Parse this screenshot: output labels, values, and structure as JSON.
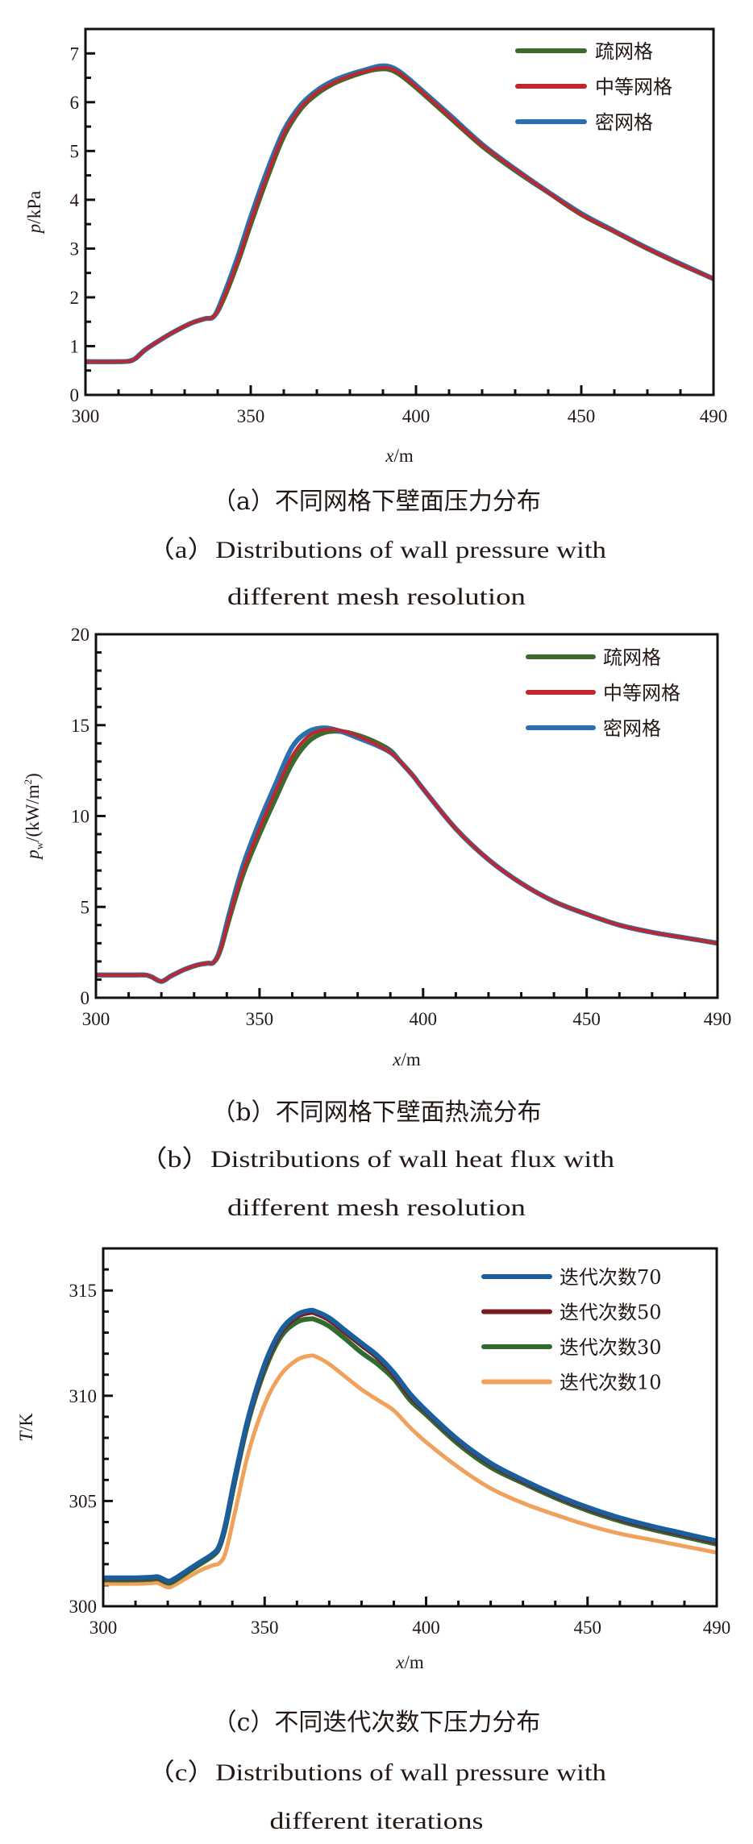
{
  "chart_data": [
    {
      "id": "a",
      "type": "line",
      "ylabel_italic": "p",
      "ylabel_unit": "/kPa",
      "xlabel_italic": "x",
      "xlabel_unit": "/m",
      "xlim": [
        300,
        490
      ],
      "ylim": [
        0,
        7.5
      ],
      "xticks": [
        300,
        350,
        400,
        450,
        490
      ],
      "xtick_labels": [
        "300",
        "350",
        "400",
        "450",
        "490"
      ],
      "yticks": [
        0,
        1,
        2,
        3,
        4,
        5,
        6,
        7
      ],
      "ytick_labels": [
        "0",
        "1",
        "2",
        "3",
        "4",
        "5",
        "6",
        "7"
      ],
      "x_minor_step": 10,
      "y_minor_step": 0.5,
      "legend_position": "top-right",
      "caption_cn": "（a）不同网格下壁面压力分布",
      "caption_en_line1": "（a）Distributions of wall pressure with",
      "caption_en_line2": "different mesh resolution",
      "series": [
        {
          "name": "疏网格",
          "color": "#3b6b2f",
          "width": 6,
          "x": [
            300,
            310,
            313,
            315,
            318,
            322,
            327,
            332,
            336,
            339,
            342,
            346,
            350,
            355,
            360,
            365,
            370,
            375,
            380,
            385,
            389,
            392,
            395,
            400,
            410,
            420,
            430,
            440,
            450,
            460,
            470,
            480,
            490
          ],
          "y": [
            0.68,
            0.68,
            0.69,
            0.74,
            0.92,
            1.1,
            1.3,
            1.47,
            1.56,
            1.62,
            2.0,
            2.7,
            3.5,
            4.45,
            5.3,
            5.85,
            6.17,
            6.38,
            6.52,
            6.63,
            6.68,
            6.67,
            6.57,
            6.3,
            5.7,
            5.1,
            4.6,
            4.15,
            3.7,
            3.35,
            3.0,
            2.68,
            2.38
          ]
        },
        {
          "name": "中等网格",
          "color": "#c0262c",
          "width": 4,
          "x": [
            300,
            310,
            313,
            315,
            318,
            322,
            327,
            332,
            336,
            339,
            342,
            346,
            350,
            355,
            360,
            365,
            370,
            375,
            380,
            385,
            389,
            392,
            395,
            400,
            410,
            420,
            430,
            440,
            450,
            460,
            470,
            480,
            490
          ],
          "y": [
            0.68,
            0.68,
            0.69,
            0.74,
            0.92,
            1.1,
            1.3,
            1.47,
            1.56,
            1.62,
            2.02,
            2.73,
            3.55,
            4.5,
            5.35,
            5.88,
            6.2,
            6.4,
            6.54,
            6.64,
            6.7,
            6.69,
            6.6,
            6.32,
            5.72,
            5.12,
            4.62,
            4.15,
            3.7,
            3.35,
            3.0,
            2.68,
            2.38
          ]
        },
        {
          "name": "密网格",
          "color": "#2a6fb0",
          "width": 6,
          "x": [
            300,
            310,
            313,
            315,
            318,
            322,
            327,
            332,
            336,
            339,
            342,
            346,
            350,
            355,
            360,
            365,
            370,
            375,
            380,
            385,
            389,
            392,
            395,
            400,
            410,
            420,
            430,
            440,
            450,
            460,
            470,
            480,
            490
          ],
          "y": [
            0.68,
            0.68,
            0.69,
            0.74,
            0.92,
            1.1,
            1.3,
            1.47,
            1.56,
            1.62,
            2.08,
            2.82,
            3.65,
            4.6,
            5.42,
            5.93,
            6.24,
            6.44,
            6.57,
            6.67,
            6.74,
            6.73,
            6.63,
            6.35,
            5.75,
            5.14,
            4.63,
            4.16,
            3.72,
            3.36,
            3.01,
            2.69,
            2.38
          ]
        }
      ]
    },
    {
      "id": "b",
      "type": "line",
      "ylabel_italic": "p",
      "ylabel_sub": "w",
      "ylabel_unit": "/(kW/m",
      "ylabel_sup": "2",
      "ylabel_close": ")",
      "xlabel_italic": "x",
      "xlabel_unit": "/m",
      "xlim": [
        300,
        490
      ],
      "ylim": [
        0,
        20
      ],
      "xticks": [
        300,
        350,
        400,
        450,
        490
      ],
      "xtick_labels": [
        "300",
        "350",
        "400",
        "450",
        "490"
      ],
      "yticks": [
        0,
        5,
        10,
        15,
        20
      ],
      "ytick_labels": [
        "0",
        "5",
        "10",
        "15",
        "20"
      ],
      "x_minor_step": 10,
      "y_minor_step": 1,
      "legend_position": "top-right",
      "caption_cn": "（b）不同网格下壁面热流分布",
      "caption_en_line1": "（b）Distributions of wall heat flux with",
      "caption_en_line2": "different mesh resolution",
      "series": [
        {
          "name": "疏网格",
          "color": "#3b6b2f",
          "width": 6,
          "x": [
            300,
            310,
            315,
            317,
            320,
            323,
            327,
            331,
            334,
            336,
            338,
            341,
            345,
            350,
            355,
            360,
            365,
            370,
            375,
            380,
            385,
            390,
            393,
            397,
            400,
            410,
            420,
            430,
            440,
            450,
            460,
            470,
            480,
            490
          ],
          "y": [
            1.25,
            1.25,
            1.25,
            1.15,
            0.9,
            1.2,
            1.55,
            1.8,
            1.9,
            1.95,
            2.6,
            4.5,
            6.8,
            9.0,
            11.0,
            12.9,
            14.1,
            14.6,
            14.65,
            14.45,
            14.1,
            13.6,
            13.0,
            12.2,
            11.5,
            9.3,
            7.6,
            6.3,
            5.3,
            4.6,
            4.0,
            3.6,
            3.3,
            3.0
          ]
        },
        {
          "name": "中等网格",
          "color": "#c0262c",
          "width": 4,
          "x": [
            300,
            310,
            315,
            317,
            320,
            323,
            327,
            331,
            334,
            336,
            338,
            341,
            345,
            350,
            355,
            360,
            365,
            370,
            375,
            380,
            385,
            390,
            393,
            397,
            400,
            410,
            420,
            430,
            440,
            450,
            460,
            470,
            480,
            490
          ],
          "y": [
            1.25,
            1.25,
            1.25,
            1.15,
            0.9,
            1.2,
            1.55,
            1.8,
            1.9,
            1.95,
            2.6,
            4.6,
            7.0,
            9.3,
            11.4,
            13.3,
            14.4,
            14.75,
            14.7,
            14.4,
            14.0,
            13.5,
            13.0,
            12.2,
            11.5,
            9.3,
            7.6,
            6.3,
            5.3,
            4.6,
            4.0,
            3.6,
            3.3,
            3.0
          ]
        },
        {
          "name": "密网格",
          "color": "#2a6fb0",
          "width": 6,
          "x": [
            300,
            310,
            315,
            317,
            320,
            323,
            327,
            331,
            334,
            336,
            338,
            341,
            345,
            350,
            355,
            360,
            365,
            370,
            375,
            380,
            385,
            390,
            393,
            397,
            400,
            410,
            420,
            430,
            440,
            450,
            460,
            470,
            480,
            490
          ],
          "y": [
            1.25,
            1.25,
            1.25,
            1.15,
            0.9,
            1.2,
            1.55,
            1.8,
            1.9,
            1.95,
            2.7,
            4.8,
            7.3,
            9.7,
            11.8,
            13.8,
            14.65,
            14.85,
            14.65,
            14.3,
            13.95,
            13.5,
            13.0,
            12.2,
            11.5,
            9.3,
            7.6,
            6.3,
            5.3,
            4.6,
            4.0,
            3.6,
            3.3,
            3.0
          ]
        }
      ]
    },
    {
      "id": "c",
      "type": "line",
      "ylabel_italic": "T",
      "ylabel_unit": "/K",
      "xlabel_italic": "x",
      "xlabel_unit": "/m",
      "xlim": [
        300,
        490
      ],
      "ylim": [
        300,
        317
      ],
      "xticks": [
        300,
        350,
        400,
        450,
        490
      ],
      "xtick_labels": [
        "300",
        "350",
        "400",
        "450",
        "490"
      ],
      "yticks": [
        300,
        305,
        310,
        315
      ],
      "ytick_labels": [
        "300",
        "305",
        "310",
        "315"
      ],
      "x_minor_step": 10,
      "y_minor_step": 1,
      "legend_position": "top-right",
      "caption_cn": "（c）不同迭代次数下压力分布",
      "caption_en_line1": "（c）Distributions of wall pressure with",
      "caption_en_line2": "different iterations",
      "series": [
        {
          "name": "迭代次数70",
          "color": "#1a5e9e",
          "width": 6,
          "x": [
            300,
            310,
            315,
            317,
            320,
            322,
            326,
            330,
            334,
            336,
            338,
            341,
            345,
            350,
            355,
            360,
            364,
            366,
            370,
            375,
            380,
            385,
            390,
            395,
            400,
            410,
            420,
            430,
            440,
            450,
            460,
            470,
            480,
            490
          ],
          "y": [
            301.35,
            301.35,
            301.38,
            301.4,
            301.2,
            301.3,
            301.7,
            302.1,
            302.5,
            302.9,
            304.0,
            306.3,
            309.0,
            311.5,
            313.1,
            313.85,
            314.05,
            314.0,
            313.7,
            313.1,
            312.5,
            311.9,
            311.1,
            310.1,
            309.3,
            307.9,
            306.8,
            306.0,
            305.3,
            304.7,
            304.2,
            303.8,
            303.45,
            303.1
          ]
        },
        {
          "name": "迭代次数50",
          "color": "#7b1a1f",
          "width": 6,
          "x": [
            300,
            310,
            315,
            317,
            320,
            322,
            326,
            330,
            334,
            336,
            338,
            341,
            345,
            350,
            355,
            360,
            364,
            366,
            370,
            375,
            380,
            385,
            390,
            395,
            400,
            410,
            420,
            430,
            440,
            450,
            460,
            470,
            480,
            490
          ],
          "y": [
            301.32,
            301.32,
            301.35,
            301.37,
            301.18,
            301.28,
            301.68,
            302.08,
            302.48,
            302.88,
            303.95,
            306.25,
            308.95,
            311.4,
            313.0,
            313.75,
            313.95,
            313.9,
            313.6,
            313.0,
            312.4,
            311.8,
            311.0,
            310.0,
            309.25,
            307.85,
            306.75,
            305.95,
            305.25,
            304.65,
            304.15,
            303.75,
            303.4,
            303.05
          ]
        },
        {
          "name": "迭代次数30",
          "color": "#2f6b2f",
          "width": 6,
          "x": [
            300,
            310,
            315,
            317,
            320,
            322,
            326,
            330,
            334,
            336,
            338,
            341,
            345,
            350,
            355,
            360,
            364,
            366,
            370,
            375,
            380,
            385,
            390,
            395,
            400,
            410,
            420,
            430,
            440,
            450,
            460,
            470,
            480,
            490
          ],
          "y": [
            301.25,
            301.25,
            301.28,
            301.3,
            301.1,
            301.2,
            301.6,
            302.0,
            302.4,
            302.8,
            303.85,
            306.1,
            308.8,
            311.2,
            312.8,
            313.5,
            313.65,
            313.6,
            313.3,
            312.7,
            312.05,
            311.5,
            310.8,
            309.8,
            309.1,
            307.7,
            306.6,
            305.85,
            305.15,
            304.55,
            304.05,
            303.65,
            303.3,
            302.95
          ]
        },
        {
          "name": "迭代次数10",
          "color": "#f0a15c",
          "width": 5,
          "x": [
            300,
            310,
            315,
            317,
            320,
            322,
            326,
            330,
            334,
            336,
            338,
            341,
            345,
            350,
            355,
            360,
            364,
            366,
            370,
            375,
            380,
            385,
            390,
            395,
            400,
            410,
            420,
            430,
            440,
            450,
            460,
            470,
            480,
            490
          ],
          "y": [
            301.07,
            301.07,
            301.1,
            301.1,
            300.9,
            301.0,
            301.35,
            301.7,
            301.95,
            302.05,
            302.6,
            304.6,
            307.3,
            309.6,
            311.0,
            311.7,
            311.9,
            311.85,
            311.5,
            310.9,
            310.3,
            309.8,
            309.3,
            308.5,
            307.8,
            306.6,
            305.6,
            304.9,
            304.35,
            303.85,
            303.45,
            303.15,
            302.85,
            302.55
          ]
        }
      ]
    }
  ]
}
